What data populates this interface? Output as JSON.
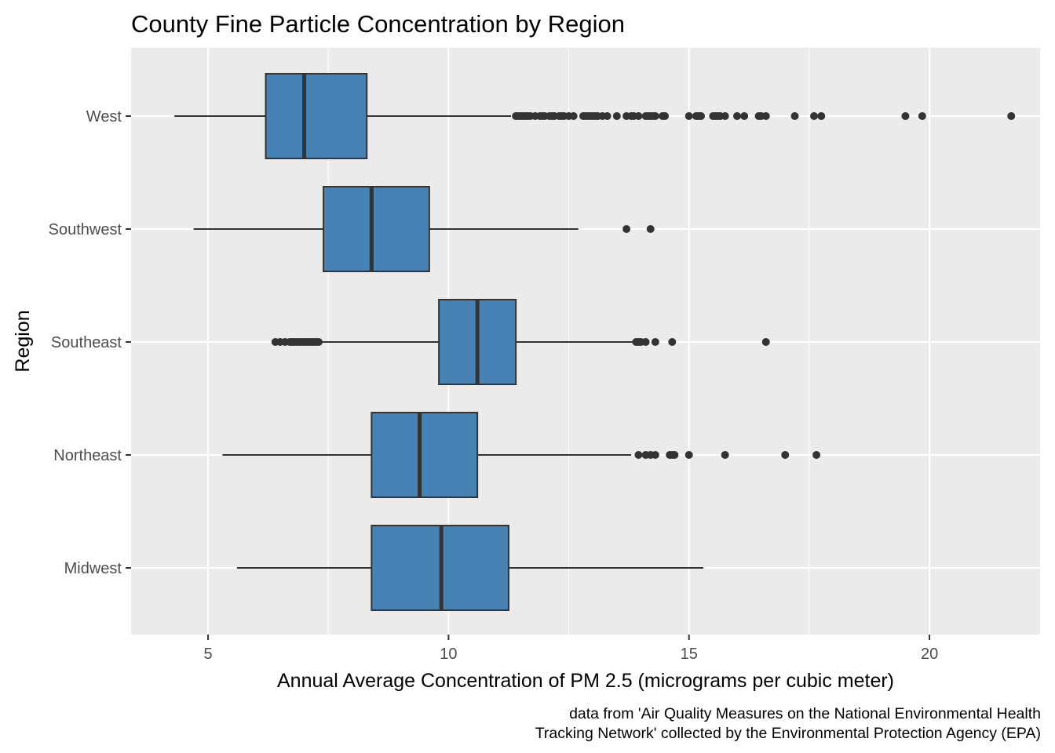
{
  "chart_data": {
    "type": "boxplot",
    "orientation": "horizontal",
    "title": "County Fine Particle Concentration by Region",
    "xlabel": "Annual Average Concentration of PM 2.5 (micrograms per cubic meter)",
    "ylabel": "Region",
    "caption": [
      "data from 'Air Quality Measures on the National Environmental Health",
      "Tracking Network' collected by the Environmental Protection Agency (EPA)"
    ],
    "xlim": [
      3.4,
      22.3
    ],
    "xticks": [
      5,
      10,
      15,
      20
    ],
    "grid": true,
    "colors": {
      "panel": "#ebebeb",
      "grid": "#ffffff",
      "box_fill": "#4682b4",
      "box_line": "#333333",
      "outlier": "#333333",
      "tick_text": "#4d4d4d"
    },
    "categories": [
      "West",
      "Southwest",
      "Southeast",
      "Northeast",
      "Midwest"
    ],
    "boxes": [
      {
        "category": "West",
        "whisker_low": 4.3,
        "q1": 6.2,
        "median": 7.0,
        "q3": 8.3,
        "whisker_high": 11.3,
        "outliers": [
          11.4,
          11.45,
          11.5,
          11.55,
          11.6,
          11.65,
          11.7,
          11.8,
          11.9,
          11.95,
          12.0,
          12.1,
          12.15,
          12.2,
          12.3,
          12.35,
          12.4,
          12.5,
          12.6,
          12.8,
          12.85,
          12.9,
          12.95,
          13.0,
          13.05,
          13.1,
          13.2,
          13.3,
          13.5,
          13.7,
          13.8,
          13.85,
          13.95,
          14.1,
          14.15,
          14.2,
          14.25,
          14.3,
          14.45,
          14.5,
          15.0,
          15.15,
          15.2,
          15.25,
          15.5,
          15.55,
          15.6,
          15.65,
          15.75,
          16.0,
          16.15,
          16.45,
          16.5,
          16.6,
          17.2,
          17.6,
          17.75,
          19.5,
          19.85,
          21.7
        ]
      },
      {
        "category": "Southwest",
        "whisker_low": 4.7,
        "q1": 7.4,
        "median": 8.4,
        "q3": 9.6,
        "whisker_high": 12.7,
        "outliers": [
          13.7,
          14.2
        ]
      },
      {
        "category": "Southeast",
        "whisker_low": 6.4,
        "q1": 9.8,
        "median": 10.6,
        "q3": 11.4,
        "whisker_high": 13.9,
        "outliers": [
          6.4,
          6.5,
          6.6,
          6.7,
          6.75,
          6.8,
          6.85,
          6.9,
          6.95,
          7.0,
          7.05,
          7.1,
          7.15,
          7.2,
          7.25,
          7.3,
          13.9,
          13.95,
          14.0,
          14.1,
          14.3,
          14.65,
          16.6
        ]
      },
      {
        "category": "Northeast",
        "whisker_low": 5.3,
        "q1": 8.4,
        "median": 9.4,
        "q3": 10.6,
        "whisker_high": 13.8,
        "outliers": [
          13.95,
          14.1,
          14.2,
          14.3,
          14.6,
          14.65,
          14.7,
          15.0,
          15.75,
          17.0,
          17.65
        ]
      },
      {
        "category": "Midwest",
        "whisker_low": 5.6,
        "q1": 8.4,
        "median": 9.85,
        "q3": 11.25,
        "whisker_high": 15.3,
        "outliers": []
      }
    ]
  }
}
